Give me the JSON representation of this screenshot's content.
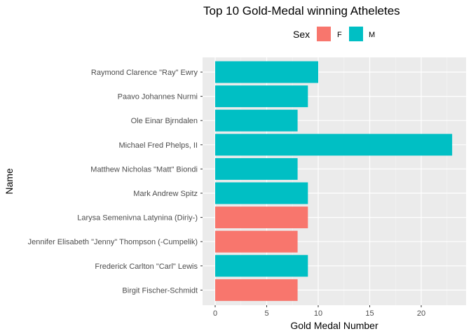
{
  "chart_data": {
    "type": "bar",
    "orientation": "horizontal",
    "title": "Top 10 Gold-Medal winning Atheletes",
    "xlabel": "Gold Medal Number",
    "ylabel": "Name",
    "xlim": [
      0,
      23
    ],
    "x_ticks": [
      "0",
      "5",
      "10",
      "15",
      "20"
    ],
    "grid": true,
    "legend": {
      "title": "Sex",
      "position": "top",
      "items": [
        {
          "label": "F",
          "color": "#F8766D"
        },
        {
          "label": "M",
          "color": "#00BFC4"
        }
      ]
    },
    "categories": [
      "Raymond Clarence \"Ray\" Ewry",
      "Paavo Johannes Nurmi",
      "Ole Einar Bjrndalen",
      "Michael Fred Phelps, II",
      "Matthew Nicholas \"Matt\" Biondi",
      "Mark Andrew Spitz",
      "Larysa Semenivna Latynina (Diriy-)",
      "Jennifer Elisabeth \"Jenny\" Thompson (-Cumpelik)",
      "Frederick Carlton \"Carl\" Lewis",
      "Birgit Fischer-Schmidt"
    ],
    "values": [
      10,
      9,
      8,
      23,
      8,
      9,
      9,
      8,
      9,
      8
    ],
    "sex": [
      "M",
      "M",
      "M",
      "M",
      "M",
      "M",
      "F",
      "F",
      "M",
      "F"
    ]
  }
}
